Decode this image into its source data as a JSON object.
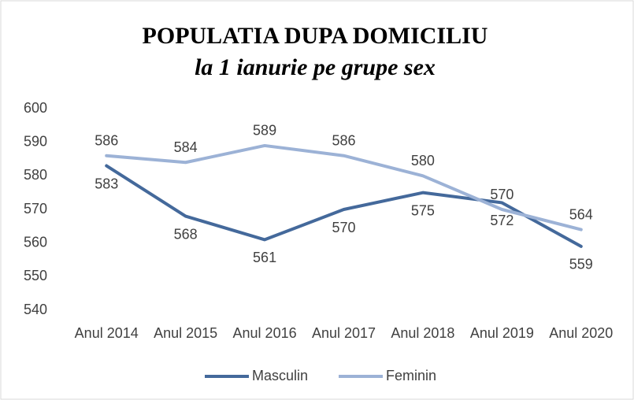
{
  "chart_data": {
    "type": "line",
    "title": "POPULATIA DUPA DOMICILIU",
    "subtitle": "la 1 ianurie pe grupe sex",
    "categories": [
      "Anul 2014",
      "Anul 2015",
      "Anul 2016",
      "Anul 2017",
      "Anul 2018",
      "Anul 2019",
      "Anul 2020"
    ],
    "series": [
      {
        "name": "Masculin",
        "color": "#44699b",
        "values": [
          583,
          568,
          561,
          570,
          575,
          572,
          559
        ]
      },
      {
        "name": "Feminin",
        "color": "#9cb2d6",
        "values": [
          586,
          584,
          589,
          586,
          580,
          570,
          564
        ]
      }
    ],
    "ylim": [
      540,
      600
    ],
    "yticks": [
      540,
      550,
      560,
      570,
      580,
      590,
      600
    ],
    "grid": false,
    "legend": "bottom"
  }
}
